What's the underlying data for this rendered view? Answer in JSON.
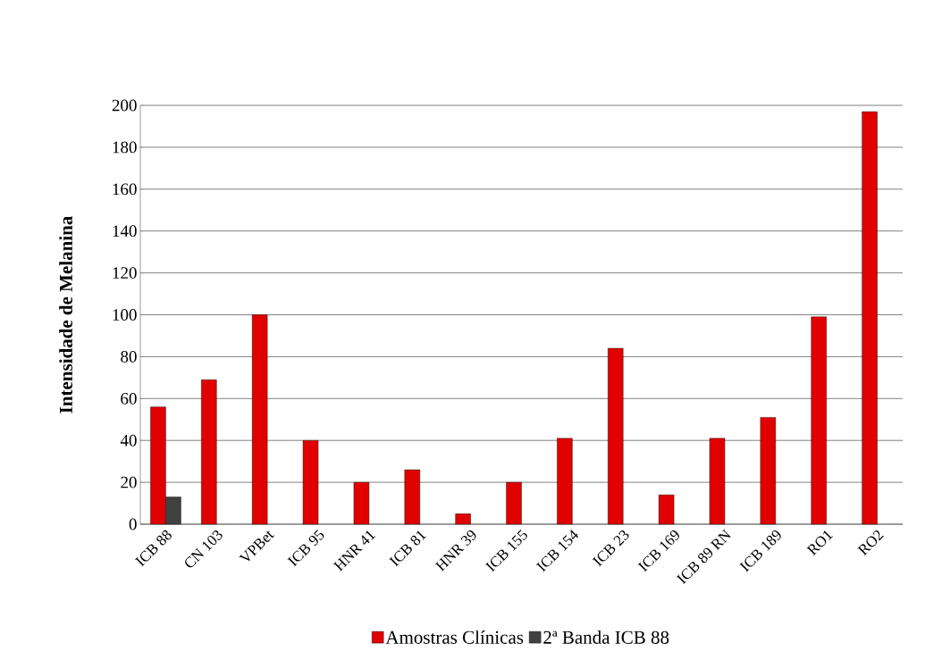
{
  "chart_data": {
    "type": "bar",
    "ylabel": "Intensidade de Melanina",
    "categories": [
      "ICB 88",
      "CN 103",
      "VPBet",
      "ICB 95",
      "HNR 41",
      "ICB 81",
      "HNR 39",
      "ICB 155",
      "ICB 154",
      "ICB 23",
      "ICB 169",
      "ICB 89 RN",
      "ICB 189",
      "RO1",
      "RO2"
    ],
    "series": [
      {
        "name": "Amostras Clínicas",
        "color": "#e00000",
        "values": [
          56,
          69,
          100,
          40,
          20,
          26,
          5,
          20,
          41,
          84,
          14,
          41,
          51,
          99,
          197
        ]
      },
      {
        "name": "2ª Banda ICB 88",
        "color": "#404040",
        "values": [
          13,
          null,
          null,
          null,
          null,
          null,
          null,
          null,
          null,
          null,
          null,
          null,
          null,
          null,
          null
        ]
      }
    ],
    "ylim": [
      0,
      200
    ],
    "yticks": [
      0,
      20,
      40,
      60,
      80,
      100,
      120,
      140,
      160,
      180,
      200
    ],
    "grid": "y",
    "legend": "bottom"
  }
}
